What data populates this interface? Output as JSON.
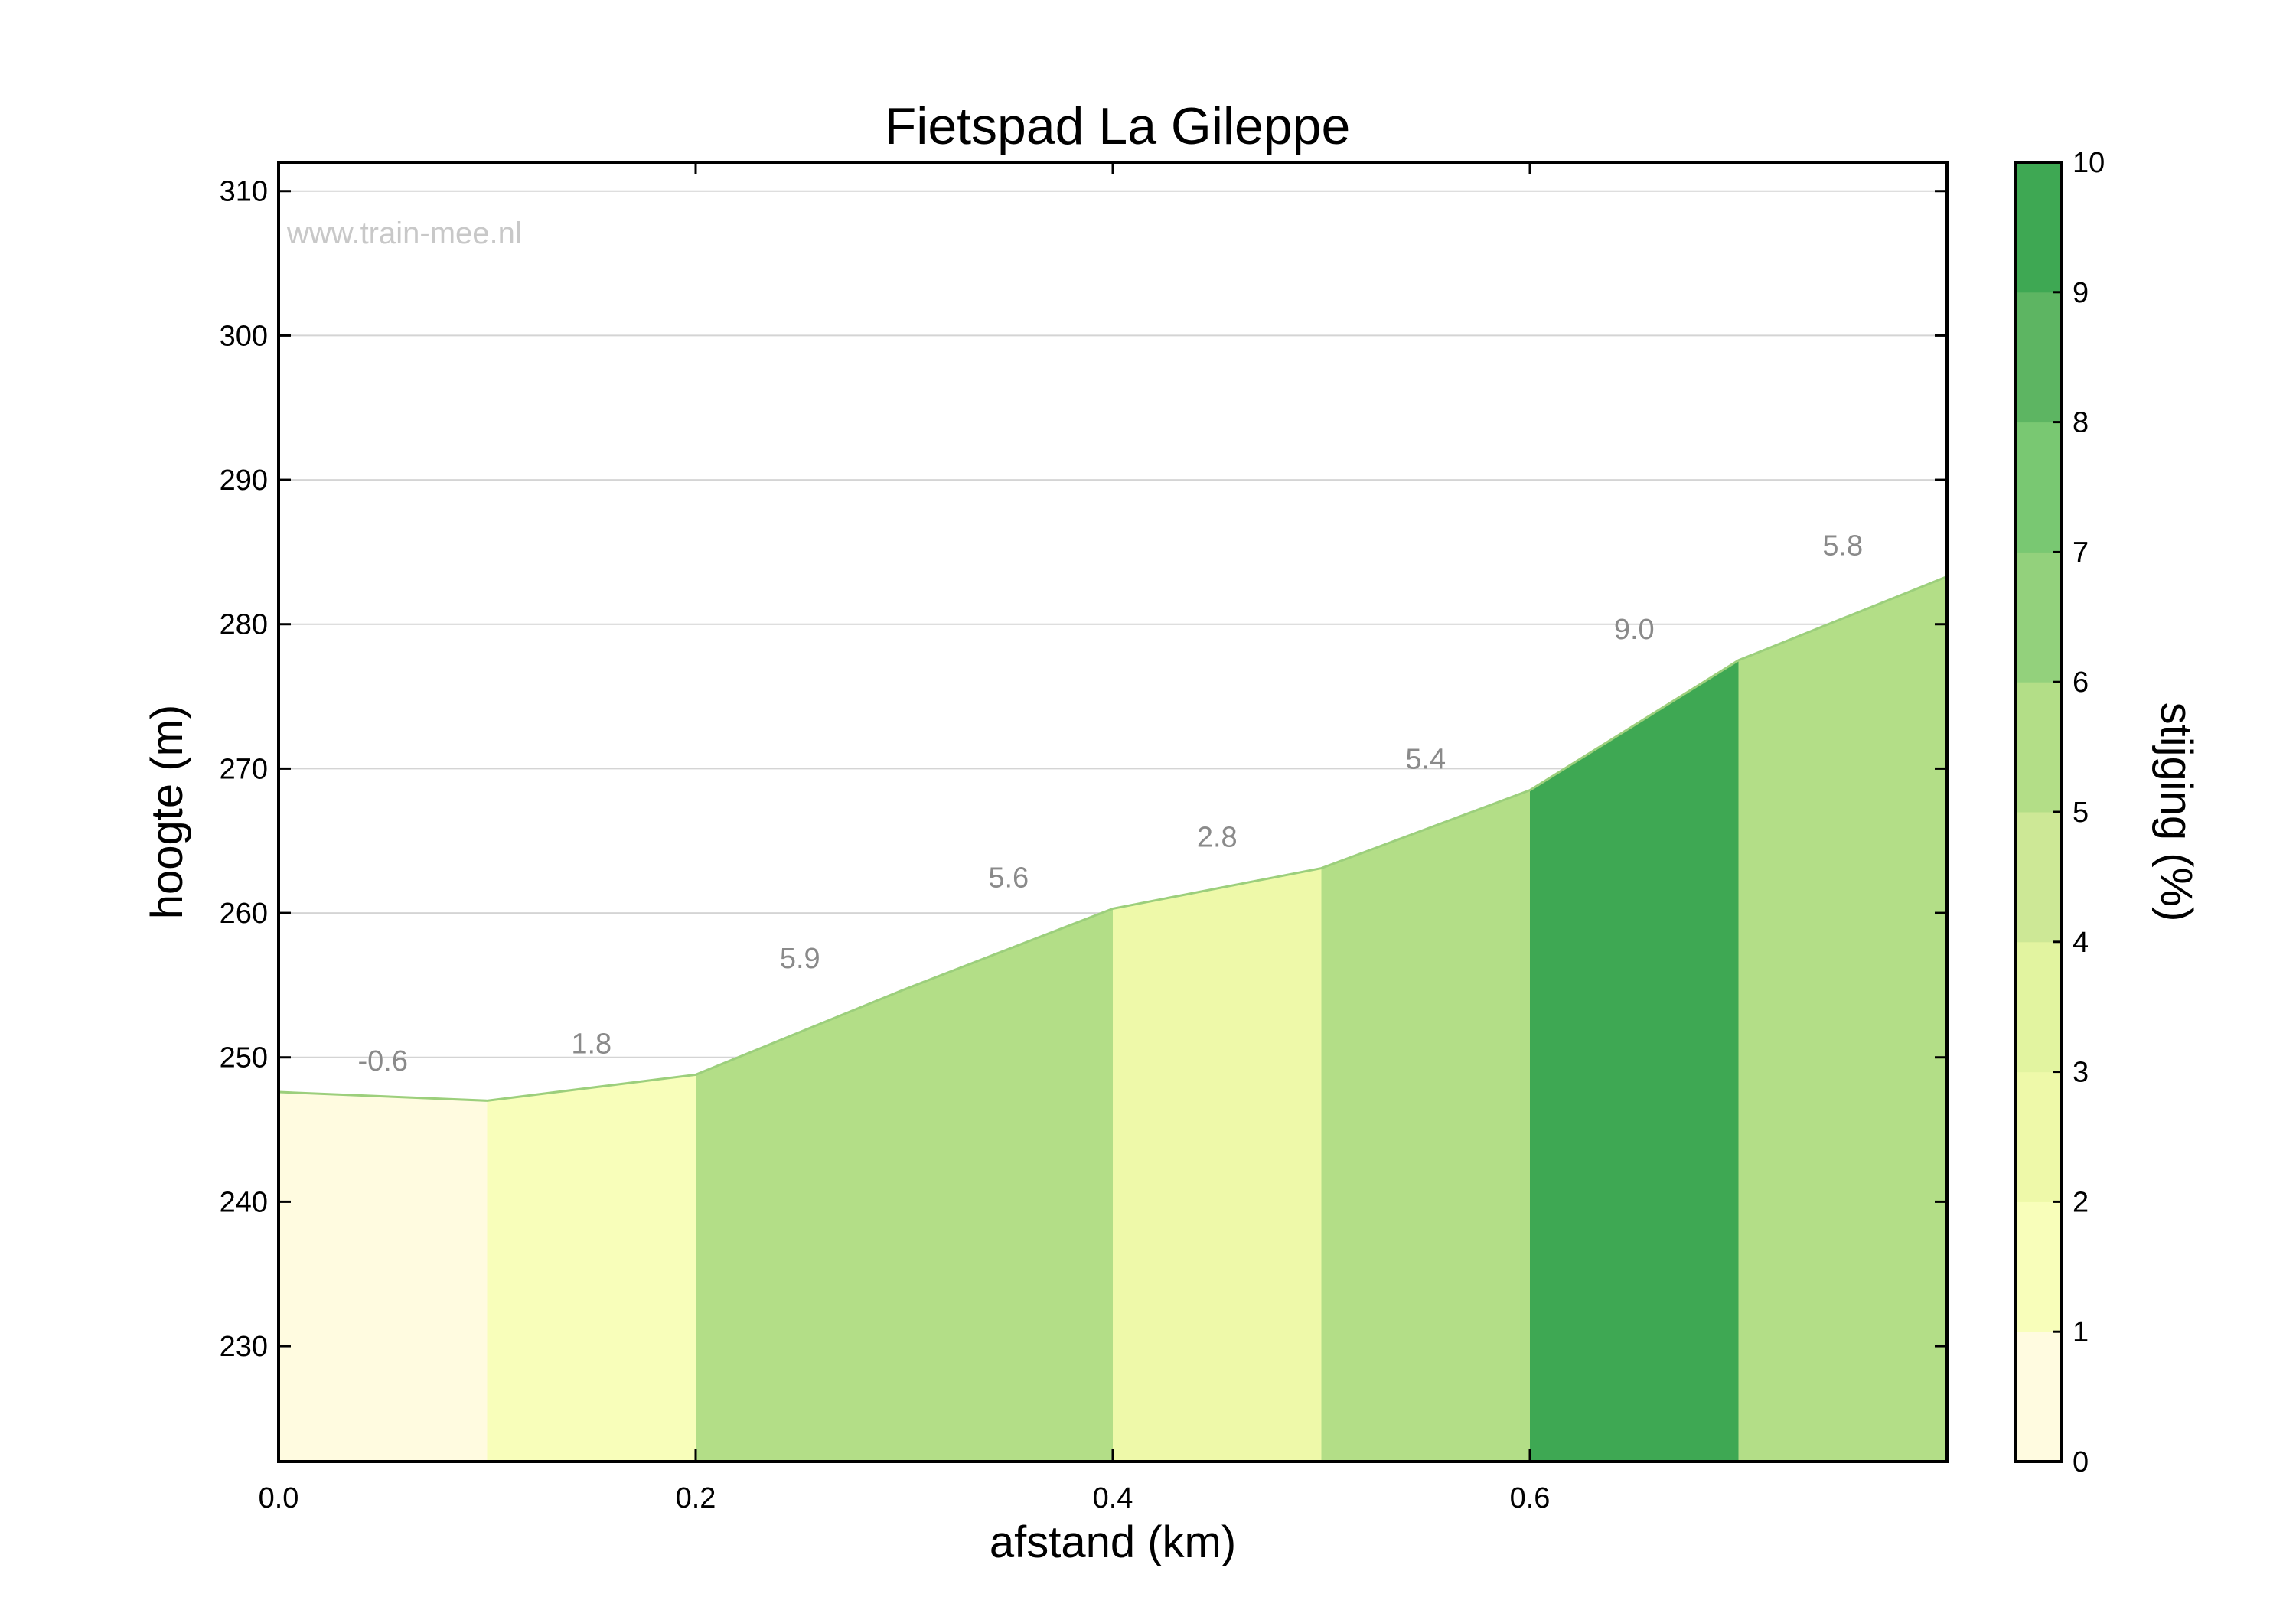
{
  "chart_data": {
    "type": "area",
    "title": "Fietspad La Gileppe",
    "xlabel": "afstand (km)",
    "ylabel": "hoogte (m)",
    "xlim": [
      0,
      0.8
    ],
    "ylim": [
      222,
      312
    ],
    "xticks": [
      "0.0",
      "0.2",
      "0.4",
      "0.6"
    ],
    "yticks": [
      "230",
      "240",
      "250",
      "260",
      "270",
      "280",
      "290",
      "300",
      "310"
    ],
    "grid": "horizontal",
    "watermark": "www.train-mee.nl",
    "distance_km": [
      0.0,
      0.1,
      0.2,
      0.3,
      0.4,
      0.5,
      0.6,
      0.7,
      0.8
    ],
    "elevation_m": [
      247.6,
      247.0,
      248.8,
      254.7,
      260.3,
      263.1,
      268.5,
      277.5,
      283.3
    ],
    "segments": [
      {
        "grade_label": "-0.6",
        "grade": -0.6
      },
      {
        "grade_label": "1.8",
        "grade": 1.8
      },
      {
        "grade_label": "5.9",
        "grade": 5.9
      },
      {
        "grade_label": "5.6",
        "grade": 5.6
      },
      {
        "grade_label": "2.8",
        "grade": 2.8
      },
      {
        "grade_label": "5.4",
        "grade": 5.4
      },
      {
        "grade_label": "9.0",
        "grade": 9.0
      },
      {
        "grade_label": "5.8",
        "grade": 5.8
      }
    ],
    "colorbar": {
      "label": "stijging (%)",
      "range": [
        0,
        10
      ],
      "ticks": [
        "0",
        "1",
        "2",
        "3",
        "4",
        "5",
        "6",
        "7",
        "8",
        "9",
        "10"
      ],
      "colors": [
        "#fffbe0",
        "#f8feba",
        "#eef9a9",
        "#e2f4a0",
        "#cde896",
        "#b3de87",
        "#93d17c",
        "#79c872",
        "#5db562",
        "#3ea853"
      ]
    }
  }
}
